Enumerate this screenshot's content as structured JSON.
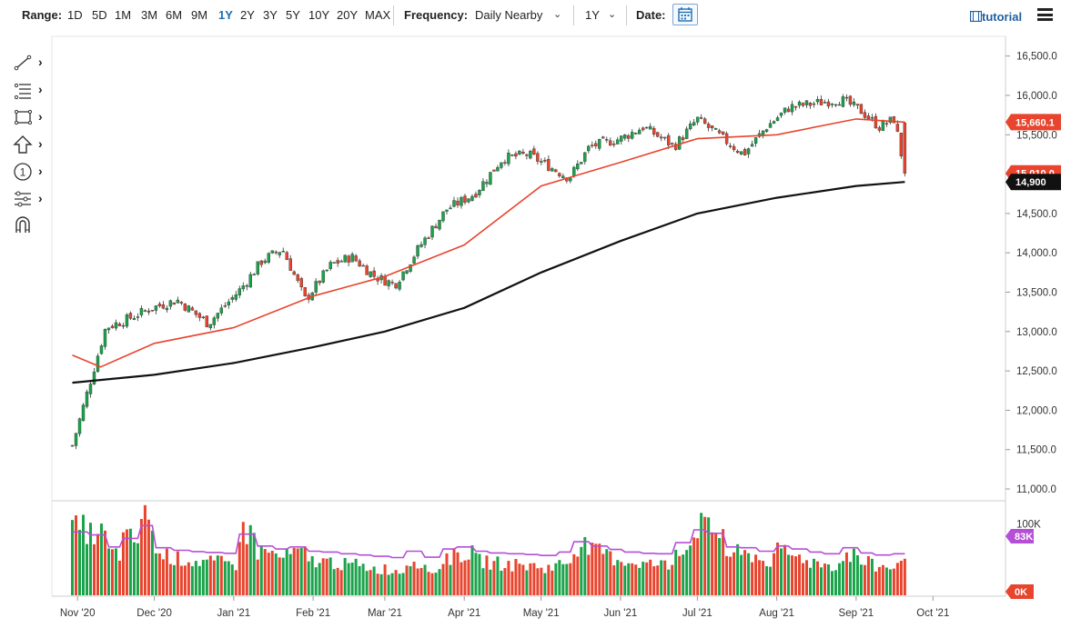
{
  "toolbar": {
    "range_label": "Range:",
    "ranges": [
      "1D",
      "5D",
      "1M",
      "3M",
      "6M",
      "9M",
      "1Y",
      "2Y",
      "3Y",
      "5Y",
      "10Y",
      "20Y",
      "MAX"
    ],
    "active_range": "1Y",
    "frequency_label": "Frequency:",
    "frequency_value": "Daily Nearby",
    "period_value": "1Y",
    "date_label": "Date:",
    "tutorial_label": "tutorial"
  },
  "sidebar": {
    "tools": [
      "line-draw-icon",
      "fibonacci-icon",
      "rectangle-icon",
      "arrow-up-icon",
      "number-marker-icon",
      "measure-icon",
      "magnet-icon"
    ]
  },
  "colors": {
    "up": "#1aa34a",
    "down": "#e8442e",
    "ma_short": "#e8442e",
    "ma_long": "#111111",
    "volume_avg": "#b44fd6",
    "accent": "#1f6fb5"
  },
  "chart_data": {
    "type": "candlestick",
    "x_tick_labels": [
      "Nov '20",
      "Dec '20",
      "Jan '21",
      "Feb '21",
      "Mar '21",
      "Apr '21",
      "May '21",
      "Jun '21",
      "Jul '21",
      "Aug '21",
      "Sep '21",
      "Oct '21"
    ],
    "price_axis": {
      "ticks": [
        "16,500.0",
        "16,000.0",
        "15,500.0",
        "15,000.0",
        "14,500.0",
        "14,000.0",
        "13,500.0",
        "13,000.0",
        "12,500.0",
        "12,000.0",
        "11,500.0",
        "11,000.0"
      ],
      "ylim": [
        10850,
        16750
      ]
    },
    "last_price_tag": "15,010.0",
    "ma_short_tag": "15,660.1",
    "ma_long_tag": "14,900",
    "volume_axis": {
      "tick": "100K",
      "avg_tag": "83K",
      "zero_tag": "0K"
    },
    "price_series": {
      "x": [
        "2020-10-30",
        "2020-11-05",
        "2020-11-12",
        "2020-11-20",
        "2020-11-30",
        "2020-12-10",
        "2020-12-22",
        "2021-01-04",
        "2021-01-12",
        "2021-01-20",
        "2021-01-29",
        "2021-02-08",
        "2021-02-16",
        "2021-02-25",
        "2021-03-05",
        "2021-03-15",
        "2021-03-25",
        "2021-04-05",
        "2021-04-16",
        "2021-04-26",
        "2021-05-04",
        "2021-05-12",
        "2021-05-20",
        "2021-06-01",
        "2021-06-10",
        "2021-06-22",
        "2021-07-01",
        "2021-07-09",
        "2021-07-19",
        "2021-07-28",
        "2021-08-06",
        "2021-08-16",
        "2021-08-26",
        "2021-09-03",
        "2021-09-10",
        "2021-09-16",
        "2021-09-20"
      ],
      "close": [
        11550,
        12250,
        13050,
        13150,
        13300,
        13400,
        13100,
        13550,
        13900,
        14050,
        13400,
        13850,
        13950,
        13700,
        13600,
        14100,
        14550,
        14750,
        15200,
        15250,
        15100,
        14950,
        15350,
        15450,
        15600,
        15350,
        15700,
        15500,
        15250,
        15600,
        15850,
        15900,
        15950,
        15800,
        15600,
        15700,
        15010
      ]
    },
    "ma_short": {
      "name": "",
      "x": [
        "2020-10-30",
        "2020-11-10",
        "2020-12-01",
        "2021-01-01",
        "2021-02-01",
        "2021-03-01",
        "2021-04-01",
        "2021-05-01",
        "2021-06-01",
        "2021-07-01",
        "2021-08-01",
        "2021-09-01",
        "2021-09-20"
      ],
      "values": [
        12700,
        12550,
        12850,
        13050,
        13450,
        13700,
        14100,
        14850,
        15150,
        15450,
        15500,
        15700,
        15660
      ]
    },
    "ma_long": {
      "name": "",
      "x": [
        "2020-10-30",
        "2020-12-01",
        "2021-01-01",
        "2021-02-01",
        "2021-03-01",
        "2021-04-01",
        "2021-05-01",
        "2021-06-01",
        "2021-07-01",
        "2021-08-01",
        "2021-09-01",
        "2021-09-20"
      ],
      "values": [
        12350,
        12450,
        12600,
        12800,
        13000,
        13300,
        13750,
        14150,
        14500,
        14700,
        14850,
        14900
      ]
    },
    "volume_series": {
      "x_range": [
        "2020-10-30",
        "2021-09-20"
      ],
      "approx_values_k": [
        95,
        88,
        60,
        80,
        110,
        58,
        52,
        49,
        47,
        45,
        90,
        62,
        55,
        60,
        50,
        48,
        44,
        41,
        38,
        35,
        50,
        36,
        55,
        60,
        50,
        46,
        44,
        42,
        40,
        48,
        72,
        62,
        54,
        48,
        45,
        44,
        70,
        100,
        92,
        60,
        58,
        50,
        62,
        55,
        48,
        44,
        58,
        46,
        41,
        44
      ]
    }
  }
}
